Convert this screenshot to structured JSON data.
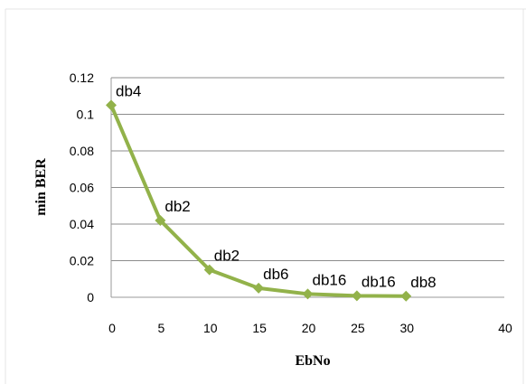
{
  "chart_data": {
    "type": "line",
    "x": [
      0,
      5,
      10,
      15,
      20,
      25,
      30
    ],
    "series": [
      {
        "values": [
          0.105,
          0.042,
          0.015,
          0.005,
          0.0018,
          0.0008,
          0.0006
        ],
        "point_labels": [
          "db4",
          "db2",
          "db2",
          "db6",
          "db16",
          "db16",
          "db8"
        ]
      }
    ],
    "xlabel": "EbNo",
    "ylabel": "min BER",
    "xlim": [
      0,
      40
    ],
    "ylim": [
      0,
      0.12
    ],
    "x_ticks": [
      "0",
      "5",
      "10",
      "15",
      "20",
      "25",
      "30",
      "40"
    ],
    "y_ticks": [
      "0",
      "0.02",
      "0.04",
      "0.06",
      "0.08",
      "0.1",
      "0.12"
    ],
    "horizontal_grid": true,
    "line_color": "#92b24a",
    "marker": "diamond"
  }
}
